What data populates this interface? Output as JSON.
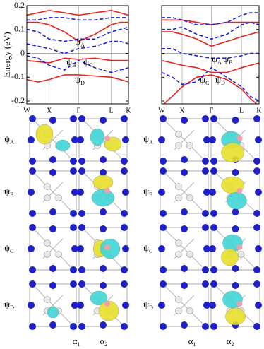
{
  "chart_data": [
    {
      "type": "line",
      "ylabel": "Energy (eV)",
      "show_ytick_labels": true,
      "x": [
        0,
        0.11,
        0.22,
        0.37,
        0.51,
        0.67,
        0.83,
        0.92,
        1.0
      ],
      "xlim": [
        0,
        1
      ],
      "xticks": [
        {
          "value": 0,
          "label": "W"
        },
        {
          "value": 0.22,
          "label": "X"
        },
        {
          "value": 0.51,
          "label": "Γ"
        },
        {
          "value": 0.83,
          "label": "L"
        },
        {
          "value": 1.0,
          "label": "K"
        }
      ],
      "ylim": [
        -0.2,
        0.2
      ],
      "yticks": [
        -0.2,
        -0.1,
        0,
        0.1,
        0.2
      ],
      "series": [
        {
          "color": "#e8231f",
          "dash": false,
          "values": [
            0.16,
            0.17,
            0.18,
            0.17,
            0.16,
            0.17,
            0.18,
            0.17,
            0.16
          ]
        },
        {
          "color": "#e8231f",
          "dash": false,
          "values": [
            0.13,
            0.13,
            0.12,
            0.09,
            0.05,
            0.08,
            0.12,
            0.13,
            0.13
          ]
        },
        {
          "color": "#e8231f",
          "dash": false,
          "values": [
            -0.03,
            -0.035,
            -0.04,
            -0.02,
            -0.025,
            -0.02,
            -0.03,
            -0.03,
            -0.03
          ]
        },
        {
          "color": "#e8231f",
          "dash": false,
          "values": [
            -0.11,
            -0.12,
            -0.11,
            -0.09,
            -0.09,
            -0.095,
            -0.1,
            -0.11,
            -0.12
          ]
        },
        {
          "color": "#1a1adb",
          "dash": true,
          "values": [
            0.14,
            0.14,
            0.15,
            0.15,
            0.14,
            0.14,
            0.15,
            0.15,
            0.15
          ]
        },
        {
          "color": "#1a1adb",
          "dash": true,
          "values": [
            0.1,
            0.09,
            0.06,
            0.05,
            0.06,
            0.06,
            0.09,
            0.1,
            0.11
          ]
        },
        {
          "color": "#1a1adb",
          "dash": true,
          "values": [
            0.04,
            0.03,
            0.02,
            0.0,
            0.02,
            0.03,
            0.05,
            0.05,
            0.04
          ]
        },
        {
          "color": "#1a1adb",
          "dash": true,
          "values": [
            -0.01,
            -0.02,
            -0.05,
            -0.07,
            -0.03,
            -0.06,
            -0.08,
            -0.07,
            -0.06
          ]
        }
      ],
      "annotations": [
        {
          "symbol": "ψ",
          "sub": "A"
        },
        {
          "symbol": "ψ",
          "sub": "B"
        },
        {
          "symbol": "ψ",
          "sub": "C"
        },
        {
          "symbol": "ψ",
          "sub": "D"
        }
      ]
    },
    {
      "type": "line",
      "show_ytick_labels": false,
      "x": [
        0,
        0.11,
        0.21,
        0.36,
        0.51,
        0.67,
        0.82,
        0.91,
        1.0
      ],
      "xlim": [
        0,
        1
      ],
      "xticks": [
        {
          "value": 0,
          "label": "W"
        },
        {
          "value": 0.21,
          "label": "X"
        },
        {
          "value": 0.51,
          "label": "Γ"
        },
        {
          "value": 0.82,
          "label": "L"
        },
        {
          "value": 1.0,
          "label": "K"
        }
      ],
      "ylim": [
        -0.2,
        0.2
      ],
      "yticks": [
        -0.2,
        -0.1,
        0,
        0.1,
        0.2
      ],
      "series": [
        {
          "color": "#e8231f",
          "dash": false,
          "values": [
            0.14,
            0.14,
            0.14,
            0.13,
            0.12,
            0.13,
            0.13,
            0.13,
            0.13
          ]
        },
        {
          "color": "#e8231f",
          "dash": false,
          "values": [
            0.09,
            0.09,
            0.08,
            0.06,
            0.03,
            0.05,
            0.07,
            0.08,
            0.09
          ]
        },
        {
          "color": "#e8231f",
          "dash": false,
          "values": [
            -0.03,
            -0.04,
            -0.05,
            -0.06,
            -0.08,
            -0.08,
            -0.06,
            -0.05,
            -0.04
          ]
        },
        {
          "color": "#e8231f",
          "dash": false,
          "values": [
            -0.22,
            -0.18,
            -0.14,
            -0.1,
            -0.09,
            -0.11,
            -0.15,
            -0.19,
            -0.22
          ]
        },
        {
          "color": "#1a1adb",
          "dash": true,
          "values": [
            0.15,
            0.15,
            0.14,
            0.12,
            0.12,
            0.13,
            0.16,
            0.17,
            0.17
          ]
        },
        {
          "color": "#1a1adb",
          "dash": true,
          "values": [
            0.1,
            0.1,
            0.11,
            0.08,
            0.06,
            0.08,
            0.12,
            0.13,
            0.12
          ]
        },
        {
          "color": "#1a1adb",
          "dash": true,
          "values": [
            0.02,
            0.02,
            0.0,
            -0.01,
            -0.02,
            -0.02,
            -0.01,
            0.0,
            0.0
          ]
        },
        {
          "color": "#1a1adb",
          "dash": true,
          "values": [
            -0.08,
            -0.1,
            -0.13,
            -0.12,
            -0.06,
            -0.1,
            -0.14,
            -0.18,
            -0.2
          ]
        }
      ],
      "annotations": [
        {
          "symbol": "ψ",
          "sub": "A"
        },
        {
          "symbol": "ψ",
          "sub": "B"
        },
        {
          "symbol": "ψ",
          "sub": "C"
        },
        {
          "symbol": "ψ",
          "sub": "D"
        }
      ]
    }
  ],
  "orbitals": {
    "rows": [
      {
        "symbol": "ψ",
        "sub": "A"
      },
      {
        "symbol": "ψ",
        "sub": "B"
      },
      {
        "symbol": "ψ",
        "sub": "C"
      },
      {
        "symbol": "ψ",
        "sub": "D"
      }
    ],
    "columns": [
      {
        "symbol": "α",
        "sub": "1"
      },
      {
        "symbol": "α",
        "sub": "2"
      }
    ]
  }
}
